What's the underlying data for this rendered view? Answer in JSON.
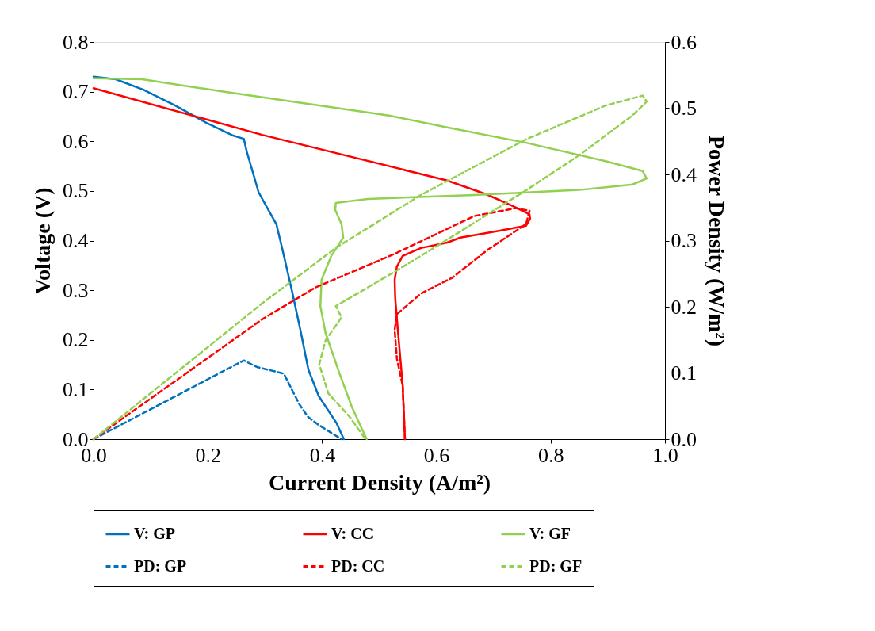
{
  "chart_data": {
    "type": "line",
    "xlabel": "Current Density (A/m²)",
    "ylabel": "Voltage (V)",
    "y2label": "Power Density (W/m²)",
    "xlim": [
      0,
      1
    ],
    "xticks": [
      {
        "value": 0,
        "label": "0.0"
      },
      {
        "value": 0.2,
        "label": "0.2"
      },
      {
        "value": 0.4,
        "label": "0.4"
      },
      {
        "value": 0.6,
        "label": "0.6"
      },
      {
        "value": 0.8,
        "label": "0.8"
      },
      {
        "value": 1,
        "label": "1.0"
      }
    ],
    "ylim": [
      0,
      0.8
    ],
    "yticks": [
      {
        "value": 0,
        "label": "0.0"
      },
      {
        "value": 0.1,
        "label": "0.1"
      },
      {
        "value": 0.2,
        "label": "0.2"
      },
      {
        "value": 0.3,
        "label": "0.3"
      },
      {
        "value": 0.4,
        "label": "0.4"
      },
      {
        "value": 0.5,
        "label": "0.5"
      },
      {
        "value": 0.6,
        "label": "0.6"
      },
      {
        "value": 0.7,
        "label": "0.7"
      },
      {
        "value": 0.8,
        "label": "0.8"
      }
    ],
    "y2lim": [
      0,
      0.6
    ],
    "y2ticks": [
      {
        "value": 0,
        "label": "0.0"
      },
      {
        "value": 0.1,
        "label": "0.1"
      },
      {
        "value": 0.2,
        "label": "0.2"
      },
      {
        "value": 0.3,
        "label": "0.3"
      },
      {
        "value": 0.4,
        "label": "0.4"
      },
      {
        "value": 0.5,
        "label": "0.5"
      },
      {
        "value": 0.6,
        "label": "0.6"
      }
    ],
    "grid": false,
    "legend": "bottom",
    "series": [
      {
        "name": "V: GP",
        "color": "#0070c0",
        "line_style": "solid",
        "x": [
          0,
          0.039,
          0.087,
          0.143,
          0.198,
          0.243,
          0.263,
          0.268,
          0.289,
          0.32,
          0.331,
          0.347,
          0.362,
          0.376,
          0.394,
          0.425,
          0.438
        ],
        "values": [
          0.73,
          0.725,
          0.704,
          0.672,
          0.637,
          0.612,
          0.605,
          0.58,
          0.497,
          0.433,
          0.38,
          0.3,
          0.22,
          0.14,
          0.087,
          0.033,
          0
        ]
      },
      {
        "name": "V: CC",
        "color": "#ff0000",
        "line_style": "solid",
        "x": [
          0,
          0.295,
          0.619,
          0.688,
          0.735,
          0.763,
          0.764,
          0.757,
          0.711,
          0.642,
          0.619,
          0.573,
          0.541,
          0.531,
          0.527,
          0.528,
          0.531,
          0.535,
          0.541,
          0.545
        ],
        "values": [
          0.707,
          0.613,
          0.521,
          0.493,
          0.469,
          0.453,
          0.444,
          0.43,
          0.42,
          0.406,
          0.396,
          0.385,
          0.369,
          0.348,
          0.321,
          0.284,
          0.241,
          0.188,
          0.109,
          0
        ]
      },
      {
        "name": "V: GF",
        "color": "#92d050",
        "line_style": "solid",
        "x": [
          0,
          0.085,
          0.222,
          0.517,
          0.619,
          0.757,
          0.896,
          0.961,
          0.968,
          0.943,
          0.85,
          0.666,
          0.48,
          0.424,
          0.423,
          0.434,
          0.437,
          0.416,
          0.399,
          0.397,
          0.406,
          0.43,
          0.452,
          0.478
        ],
        "values": [
          0.727,
          0.725,
          0.701,
          0.652,
          0.628,
          0.597,
          0.56,
          0.54,
          0.525,
          0.513,
          0.502,
          0.492,
          0.484,
          0.476,
          0.462,
          0.433,
          0.406,
          0.369,
          0.321,
          0.268,
          0.214,
          0.134,
          0.065,
          0
        ]
      },
      {
        "name": "PD: GP",
        "color": "#0070c0",
        "line_style": "dashed",
        "axis": "y2",
        "x": [
          0,
          0.263,
          0.286,
          0.333,
          0.36,
          0.375,
          0.393,
          0.434
        ],
        "values": [
          0,
          0.119,
          0.109,
          0.099,
          0.053,
          0.034,
          0.022,
          0
        ]
      },
      {
        "name": "PD: CC",
        "color": "#ff0000",
        "line_style": "dashed",
        "axis": "y2",
        "x": [
          0,
          0.295,
          0.388,
          0.527,
          0.666,
          0.739,
          0.763,
          0.757,
          0.688,
          0.628,
          0.573,
          0.531,
          0.527,
          0.531,
          0.541,
          0.545
        ],
        "values": [
          0,
          0.181,
          0.229,
          0.28,
          0.337,
          0.349,
          0.345,
          0.325,
          0.285,
          0.244,
          0.22,
          0.189,
          0.165,
          0.121,
          0.081,
          0
        ]
      },
      {
        "name": "PD: GF",
        "color": "#92d050",
        "line_style": "dashed",
        "axis": "y2",
        "x": [
          0,
          0.295,
          0.424,
          0.573,
          0.757,
          0.896,
          0.961,
          0.968,
          0.943,
          0.85,
          0.757,
          0.596,
          0.527,
          0.424,
          0.434,
          0.406,
          0.395,
          0.411,
          0.448,
          0.476
        ],
        "values": [
          0,
          0.205,
          0.289,
          0.369,
          0.453,
          0.504,
          0.519,
          0.51,
          0.489,
          0.429,
          0.376,
          0.289,
          0.253,
          0.201,
          0.184,
          0.149,
          0.113,
          0.069,
          0.034,
          0
        ]
      }
    ]
  }
}
